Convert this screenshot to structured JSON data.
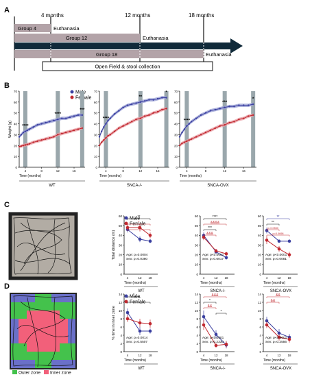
{
  "panels": {
    "A": {
      "label": "A",
      "timepoints": [
        "4 months",
        "12 months",
        "18 months"
      ],
      "groups": [
        "Group 4",
        "Group 12",
        "Group 18"
      ],
      "euthanasia_label": "Euthanasia",
      "collection_label": "Open Field & stool collection"
    },
    "B": {
      "label": "B"
    },
    "C": {
      "label": "C"
    },
    "D": {
      "label": "D",
      "zone_legend": {
        "outer": "Outer zone",
        "inner": "Inner zone"
      }
    }
  },
  "legend": {
    "male": "Male",
    "female": "Female"
  },
  "colors": {
    "male": "#3a3fa0",
    "female": "#c0282f",
    "male_band": "#9aa0d4",
    "female_band": "#eaa0a6",
    "bar": "#9aa7ac",
    "arrow": "#102a3a",
    "group_bar": "#b3a3a8",
    "outer_zone": "#6a70c8",
    "inner_zone": "#f2607a",
    "green_zone": "#44c24c",
    "arena": "#b2aca4",
    "sig_black": "#111111",
    "sig_blue": "#3a3fa0",
    "sig_red": "#c0282f"
  },
  "chart_data": [
    {
      "type": "line",
      "panel": "B",
      "group": "WT",
      "ylabel": "Weight (g)",
      "xlabel": "Time (months)",
      "ylim": [
        0,
        70
      ],
      "yticks": [
        "0",
        "10",
        "20",
        "30",
        "40",
        "50",
        "60",
        "70"
      ],
      "xticks": [
        "4",
        "8",
        "12",
        "16"
      ],
      "x": [
        2.5,
        3,
        3.5,
        4,
        4.5,
        5,
        6,
        7,
        8,
        9,
        10,
        11,
        12,
        13,
        14,
        15,
        16,
        17,
        18
      ],
      "series": [
        {
          "name": "Male",
          "values": [
            28,
            30,
            32,
            33,
            34,
            35,
            37,
            39,
            40,
            41,
            42,
            43,
            44,
            45,
            45,
            46,
            47,
            48,
            48
          ]
        },
        {
          "name": "Female",
          "values": [
            19,
            19.5,
            20,
            20.5,
            21,
            21.5,
            23,
            24,
            25,
            26,
            27,
            28,
            30,
            31,
            32,
            33,
            34,
            35,
            36
          ]
        }
      ],
      "bars_at": [
        4,
        12,
        18
      ],
      "stars": [
        {
          "x": 4,
          "text": "****"
        },
        {
          "x": 12,
          "text": "****"
        },
        {
          "x": 18,
          "text": "***"
        }
      ]
    },
    {
      "type": "line",
      "panel": "B",
      "group": "SNCA-/-",
      "ylabel": "",
      "xlabel": "Time (months)",
      "ylim": [
        0,
        70
      ],
      "yticks": [
        "0",
        "10",
        "20",
        "30",
        "40",
        "50",
        "60",
        "70"
      ],
      "xticks": [
        "4",
        "8",
        "12",
        "16"
      ],
      "x": [
        2.5,
        3,
        3.5,
        4,
        4.5,
        5,
        6,
        7,
        8,
        9,
        10,
        11,
        12,
        13,
        14,
        15,
        16,
        17,
        18
      ],
      "series": [
        {
          "name": "Male",
          "values": [
            28,
            33,
            37,
            40,
            43,
            45,
            49,
            52,
            55,
            57,
            58,
            59,
            60,
            61,
            62,
            62,
            63,
            64,
            64
          ]
        },
        {
          "name": "Female",
          "values": [
            20,
            23,
            25,
            27,
            29,
            30,
            33,
            36,
            38,
            40,
            42,
            44,
            45,
            47,
            48,
            50,
            51,
            53,
            54
          ]
        }
      ],
      "bars_at": [
        4,
        12,
        18
      ],
      "stars": [
        {
          "x": 4,
          "text": "****"
        },
        {
          "x": 12,
          "text": "**"
        },
        {
          "x": 18,
          "text": "*"
        }
      ]
    },
    {
      "type": "line",
      "panel": "B",
      "group": "SNCA-OVX",
      "ylabel": "",
      "xlabel": "Time (months)",
      "ylim": [
        0,
        70
      ],
      "yticks": [
        "0",
        "10",
        "20",
        "30",
        "40",
        "50",
        "60",
        "70"
      ],
      "xticks": [
        "4",
        "8",
        "12",
        "16"
      ],
      "x": [
        2.5,
        3,
        3.5,
        4,
        4.5,
        5,
        6,
        7,
        8,
        9,
        10,
        11,
        12,
        13,
        14,
        15,
        16,
        17,
        18
      ],
      "series": [
        {
          "name": "Male",
          "values": [
            28,
            32,
            35,
            38,
            40,
            42,
            45,
            48,
            50,
            52,
            53,
            54,
            55,
            56,
            56,
            57,
            57,
            57,
            58
          ]
        },
        {
          "name": "Female",
          "values": [
            20,
            22,
            23,
            24,
            25,
            26,
            28,
            30,
            32,
            34,
            36,
            38,
            39,
            41,
            42,
            44,
            45,
            47,
            48
          ]
        }
      ],
      "bars_at": [
        4,
        12,
        18
      ],
      "stars": [
        {
          "x": 4,
          "text": "****"
        },
        {
          "x": 12,
          "text": "***"
        },
        {
          "x": 18,
          "text": "*"
        }
      ]
    },
    {
      "type": "line",
      "panel": "C",
      "group": "WT",
      "ylabel": "Total distance (m)",
      "xlabel": "Time (months)",
      "ylim": [
        0,
        60
      ],
      "yticks": [
        "0",
        "10",
        "20",
        "30",
        "40",
        "50",
        "60"
      ],
      "categories": [
        "4",
        "12",
        "18"
      ],
      "series": [
        {
          "name": "Male",
          "values": [
            46,
            36,
            34
          ],
          "err": [
            3,
            3,
            2
          ]
        },
        {
          "name": "Female",
          "values": [
            48,
            48,
            40
          ],
          "err": [
            3,
            4,
            3
          ]
        }
      ],
      "stats_text": [
        "Age: p=0.0004",
        "Sex: p=0.0380"
      ],
      "sig": [
        {
          "from": "4",
          "to": "18",
          "color": "sig_black",
          "text": "**"
        },
        {
          "from": "4",
          "to": "18",
          "color": "sig_red",
          "text": "*"
        },
        {
          "from": "4",
          "to": "18",
          "color": "sig_red",
          "text": "&"
        }
      ]
    },
    {
      "type": "line",
      "panel": "C",
      "group": "SNCA-/-",
      "ylabel": "",
      "xlabel": "Time (months)",
      "ylim": [
        0,
        60
      ],
      "yticks": [
        "0",
        "10",
        "20",
        "30",
        "40",
        "50",
        "60"
      ],
      "categories": [
        "4",
        "12",
        "18"
      ],
      "series": [
        {
          "name": "Male",
          "values": [
            40,
            23,
            17
          ],
          "err": [
            3,
            2,
            2
          ]
        },
        {
          "name": "Female",
          "values": [
            38,
            24,
            21
          ],
          "err": [
            3,
            2,
            2
          ]
        }
      ],
      "stats_text": [
        "Age: p<0.0001",
        "Sex: p=0.6017"
      ],
      "sig": [
        {
          "from": "4",
          "to": "18",
          "color": "sig_black",
          "text": "****"
        },
        {
          "from": "4",
          "to": "18",
          "color": "sig_red",
          "text": "&&&&"
        },
        {
          "from": "4",
          "to": "12",
          "color": "sig_black",
          "text": "***"
        },
        {
          "from": "4",
          "to": "12",
          "color": "sig_red",
          "text": "&&&"
        }
      ]
    },
    {
      "type": "line",
      "panel": "C",
      "group": "SNCA-OVX",
      "ylabel": "",
      "xlabel": "Time (months)",
      "ylim": [
        0,
        60
      ],
      "yticks": [
        "0",
        "10",
        "20",
        "30",
        "40",
        "50",
        "60"
      ],
      "categories": [
        "4",
        "12",
        "18"
      ],
      "series": [
        {
          "name": "Male",
          "values": [
            45,
            34,
            34
          ],
          "err": [
            3,
            1,
            1
          ]
        },
        {
          "name": "Female",
          "values": [
            35,
            26,
            20
          ],
          "err": [
            4,
            3,
            3
          ]
        }
      ],
      "stats_text": [
        "Age: p<0.0001",
        "Sex: p=0.0081"
      ],
      "sig": [
        {
          "from": "4",
          "to": "18",
          "color": "sig_blue",
          "text": "**"
        },
        {
          "from": "4",
          "to": "12",
          "color": "sig_black",
          "text": "**"
        },
        {
          "from": "4",
          "to": "12",
          "color": "sig_red",
          "text": "p=0.0550"
        },
        {
          "from": "4",
          "to": "18",
          "color": "sig_red",
          "text": "p=0.0698"
        }
      ]
    },
    {
      "type": "line",
      "panel": "D",
      "group": "WT",
      "ylabel": "% time in inner zone",
      "xlabel": "Time (months)",
      "ylim": [
        0,
        14
      ],
      "yticks": [
        "0",
        "2",
        "4",
        "6",
        "8",
        "10",
        "12",
        "14"
      ],
      "categories": [
        "4",
        "12",
        "18"
      ],
      "series": [
        {
          "name": "Male",
          "values": [
            9.5,
            5,
            5
          ],
          "err": [
            1,
            1,
            0.6
          ]
        },
        {
          "name": "Female",
          "values": [
            8,
            7,
            6.8
          ],
          "err": [
            0.8,
            1,
            1
          ]
        }
      ],
      "stats_text": [
        "Age: p=0.0014",
        "Sex: p=0.5507"
      ],
      "sig": [
        {
          "from": "4",
          "to": "12",
          "color": "sig_black",
          "text": "*"
        },
        {
          "from": "4",
          "to": "18",
          "color": "sig_black",
          "text": "*"
        }
      ]
    },
    {
      "type": "line",
      "panel": "D",
      "group": "SNCA-/-",
      "ylabel": "",
      "xlabel": "Time (months)",
      "ylim": [
        0,
        14
      ],
      "yticks": [
        "0",
        "2",
        "4",
        "6",
        "8",
        "10",
        "12",
        "14"
      ],
      "categories": [
        "4",
        "12",
        "18"
      ],
      "series": [
        {
          "name": "Male",
          "values": [
            8.5,
            4.2,
            1.6
          ],
          "err": [
            1.5,
            1,
            0.8
          ]
        },
        {
          "name": "Female",
          "values": [
            6.5,
            1.5,
            1.8
          ],
          "err": [
            1.2,
            0.5,
            0.8
          ]
        }
      ],
      "stats_text": [
        "Age: p<0.0001",
        "Sex: p=0.2330"
      ],
      "sig": [
        {
          "from": "4",
          "to": "18",
          "color": "sig_red",
          "text": "&&&"
        },
        {
          "from": "4",
          "to": "12",
          "color": "sig_black",
          "text": "*"
        },
        {
          "from": "4",
          "to": "12",
          "color": "sig_red",
          "text": "&&"
        },
        {
          "from": "12",
          "to": "18",
          "color": "sig_black",
          "text": "*"
        }
      ]
    },
    {
      "type": "line",
      "panel": "D",
      "group": "SNCA-OVX",
      "ylabel": "",
      "xlabel": "Time (months)",
      "ylim": [
        0,
        14
      ],
      "yticks": [
        "0",
        "2",
        "4",
        "6",
        "8",
        "10",
        "12",
        "14"
      ],
      "categories": [
        "4",
        "12",
        "18"
      ],
      "series": [
        {
          "name": "Male",
          "values": [
            7.5,
            4.5,
            3.5
          ],
          "err": [
            1,
            1,
            0.8
          ]
        },
        {
          "name": "Female",
          "values": [
            6.5,
            3.5,
            3
          ],
          "err": [
            0.8,
            0.8,
            0.8
          ]
        }
      ],
      "stats_text": [
        "Age: p<0.0001",
        "Sex: p=0.2556"
      ],
      "sig": [
        {
          "from": "4",
          "to": "18",
          "color": "sig_red",
          "text": "&&"
        },
        {
          "from": "4",
          "to": "12",
          "color": "sig_red",
          "text": "&&"
        }
      ]
    }
  ]
}
